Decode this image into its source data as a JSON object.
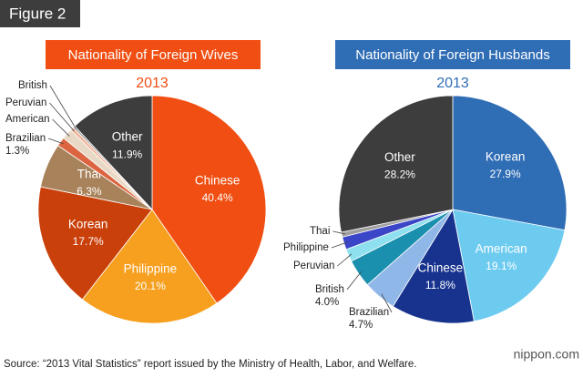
{
  "figure_label": "Figure 2",
  "source": "Source: “2013 Vital Statistics” report issued by the Ministry of Health, Labor, and Welfare.",
  "brand": "nippon.com",
  "chart_data": [
    {
      "type": "pie",
      "title": "Nationality of Foreign Wives",
      "subtitle": "2013",
      "title_color": "#f04e12",
      "categories": [
        "Chinese",
        "Philippine",
        "Korean",
        "Thai",
        "Brazilian",
        "American",
        "Peruvian",
        "British",
        "Other"
      ],
      "values": [
        40.4,
        20.1,
        17.7,
        6.3,
        1.3,
        1.5,
        0.5,
        0.3,
        11.9
      ],
      "value_labels": [
        "40.4%",
        "20.1%",
        "17.7%",
        "6.3%",
        "1.3%",
        null,
        null,
        null,
        "11.9%"
      ],
      "colors": [
        "#f04e12",
        "#f7a020",
        "#c9400a",
        "#a8825a",
        "#dc6440",
        "#e8d9c6",
        "#f2b59a",
        "#9a9a9a",
        "#3d3d3d"
      ]
    },
    {
      "type": "pie",
      "title": "Nationality of Foreign Husbands",
      "subtitle": "2013",
      "title_color": "#2f6db5",
      "categories": [
        "Korean",
        "American",
        "Chinese",
        "Brazilian",
        "British",
        "Peruvian",
        "Philippine",
        "Thai",
        "Other"
      ],
      "values": [
        27.9,
        19.1,
        11.8,
        4.7,
        4.0,
        1.8,
        1.8,
        0.7,
        28.2
      ],
      "value_labels": [
        "27.9%",
        "19.1%",
        "11.8%",
        "4.7%",
        "4.0%",
        null,
        null,
        null,
        "28.2%"
      ],
      "colors": [
        "#2f6db5",
        "#6ecbf0",
        "#17338e",
        "#8fb7e8",
        "#1a8fae",
        "#8ee0ee",
        "#3a45c8",
        "#a0a0a0",
        "#3d3d3d"
      ]
    }
  ]
}
